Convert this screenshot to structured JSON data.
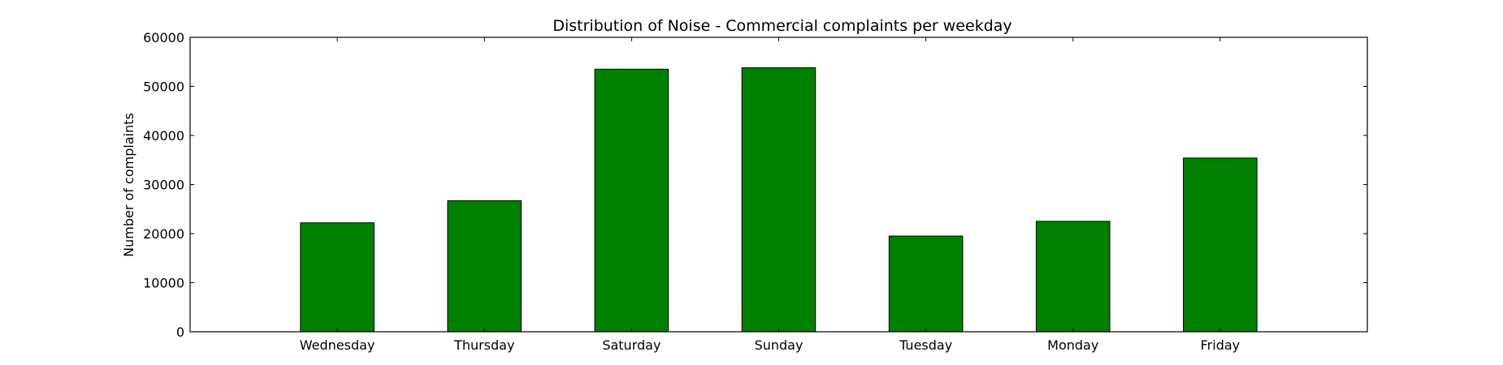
{
  "chart_data": {
    "type": "bar",
    "title": "Distribution of  Noise - Commercial complaints per weekday",
    "xlabel": "",
    "ylabel": "Number of complaints",
    "categories": [
      "Wednesday",
      "Thursday",
      "Saturday",
      "Sunday",
      "Tuesday",
      "Monday",
      "Friday"
    ],
    "values": [
      22200,
      26700,
      53500,
      53800,
      19500,
      22500,
      35400
    ],
    "ylim": [
      0,
      60000
    ],
    "yticks": [
      0,
      10000,
      20000,
      30000,
      40000,
      50000,
      60000
    ],
    "bar_color": "#008000",
    "grid": false,
    "legend": "none"
  }
}
